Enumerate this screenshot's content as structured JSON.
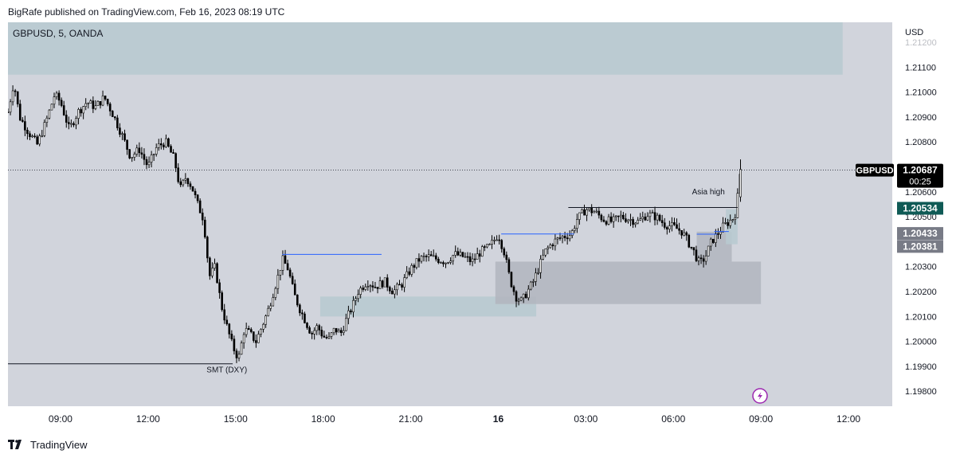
{
  "header": {
    "published": "BigRafe published on TradingView.com, Feb 16, 2023 08:19 UTC"
  },
  "footer": {
    "brand": "TradingView"
  },
  "colors": {
    "plot_bg": "#d1d4dc",
    "candle": "#000000",
    "zone_teal": "#b8cad0",
    "zone_gray": "#b2b5be",
    "blue_line": "#2962ff",
    "price_badge": "#000000",
    "asia_badge": "#0f5a55",
    "gray_badge": "#787b86",
    "lightning": "#9c27b0"
  },
  "chart_data": {
    "type": "candlestick",
    "symbol_label": "GBPUSD, 5, OANDA",
    "currency": "USD",
    "y_ticks": [
      "1.21100",
      "1.21000",
      "1.20900",
      "1.20800",
      "1.20600",
      "1.20500",
      "1.20300",
      "1.20200",
      "1.20100",
      "1.20000",
      "1.19900",
      "1.19800"
    ],
    "y_partial_tick": "1.21200",
    "ylim": [
      1.1974,
      1.2128
    ],
    "x_ticks": [
      "09:00",
      "12:00",
      "15:00",
      "18:00",
      "21:00",
      "16",
      "03:00",
      "06:00",
      "09:00",
      "12:00"
    ],
    "x_tick_hours": [
      9,
      12,
      15,
      18,
      21,
      24,
      27,
      30,
      33,
      36
    ],
    "xlim_hours": [
      7.2,
      37.5
    ],
    "current_price": {
      "symbol": "GBPUSD",
      "price": "1.20687",
      "countdown": "00:25",
      "value": 1.20687
    },
    "price_labels": [
      {
        "text": "1.20534",
        "value": 1.20534,
        "style": "asia"
      },
      {
        "text": "1.20433",
        "value": 1.20433,
        "style": "gray"
      },
      {
        "text": "1.20381",
        "value": 1.20381,
        "style": "gray"
      }
    ],
    "annotations": [
      {
        "text": "SMT (DXY)",
        "hour": 14.7,
        "price": 1.19875
      },
      {
        "text": "Asia high",
        "hour": 31.2,
        "price": 1.2059
      }
    ],
    "zones": [
      {
        "name": "top-zone",
        "x0": 7.2,
        "x1": 35.8,
        "y0": 1.2128,
        "y1": 1.2107,
        "style": "teal"
      },
      {
        "name": "demand-zone-left",
        "x0": 17.9,
        "x1": 25.3,
        "y0": 1.2018,
        "y1": 1.201,
        "style": "teal"
      },
      {
        "name": "demand-zone-big",
        "x0": 23.9,
        "x1": 33.0,
        "y0": 1.2032,
        "y1": 1.2015,
        "style": "gray"
      },
      {
        "name": "demand-zone-small",
        "x0": 30.8,
        "x1": 32.0,
        "y0": 1.2044,
        "y1": 1.2032,
        "style": "gray"
      },
      {
        "name": "asia-block",
        "x0": 31.8,
        "x1": 32.2,
        "y0": 1.2053,
        "y1": 1.2039,
        "style": "teal"
      }
    ],
    "lines": [
      {
        "name": "smt-line",
        "x0": 7.2,
        "x1": 14.9,
        "y": 1.1991,
        "style": "black"
      },
      {
        "name": "swing-high-1",
        "x0": 16.6,
        "x1": 20.0,
        "y": 1.20349,
        "style": "blue"
      },
      {
        "name": "swing-high-2",
        "x0": 24.1,
        "x1": 26.6,
        "y": 1.20431,
        "style": "blue"
      },
      {
        "name": "asia-high-line",
        "x0": 26.4,
        "x1": 32.2,
        "y": 1.20537,
        "style": "black"
      },
      {
        "name": "inner-high",
        "x0": 30.8,
        "x1": 31.5,
        "y": 1.2043,
        "style": "blue"
      },
      {
        "name": "inner-high-2",
        "x0": 31.4,
        "x1": 31.9,
        "y": 1.20441,
        "style": "blue"
      }
    ],
    "path_points": [
      [
        7.2,
        1.2092
      ],
      [
        7.4,
        1.2104
      ],
      [
        7.6,
        1.209
      ],
      [
        7.9,
        1.2084
      ],
      [
        8.2,
        1.2079
      ],
      [
        8.5,
        1.2088
      ],
      [
        8.8,
        1.2099
      ],
      [
        9.0,
        1.2096
      ],
      [
        9.3,
        1.2085
      ],
      [
        9.6,
        1.2092
      ],
      [
        9.9,
        1.2096
      ],
      [
        10.2,
        1.2094
      ],
      [
        10.5,
        1.2098
      ],
      [
        10.8,
        1.2091
      ],
      [
        11.1,
        1.2083
      ],
      [
        11.4,
        1.2074
      ],
      [
        11.7,
        1.2077
      ],
      [
        12.0,
        1.207
      ],
      [
        12.3,
        1.2078
      ],
      [
        12.6,
        1.208
      ],
      [
        12.9,
        1.2073
      ],
      [
        13.1,
        1.2061
      ],
      [
        13.3,
        1.2066
      ],
      [
        13.5,
        1.2062
      ],
      [
        13.7,
        1.2055
      ],
      [
        13.9,
        1.2049
      ],
      [
        14.0,
        1.2038
      ],
      [
        14.1,
        1.2026
      ],
      [
        14.3,
        1.203
      ],
      [
        14.5,
        1.2015
      ],
      [
        14.7,
        1.2006
      ],
      [
        14.9,
        1.1998
      ],
      [
        15.1,
        1.1993
      ],
      [
        15.3,
        1.2005
      ],
      [
        15.5,
        1.2003
      ],
      [
        15.7,
        1.2
      ],
      [
        15.9,
        1.2006
      ],
      [
        16.1,
        1.2012
      ],
      [
        16.3,
        1.202
      ],
      [
        16.5,
        1.2028
      ],
      [
        16.6,
        1.2033
      ],
      [
        16.8,
        1.2029
      ],
      [
        17.0,
        1.2019
      ],
      [
        17.2,
        1.2013
      ],
      [
        17.4,
        1.2008
      ],
      [
        17.6,
        1.2003
      ],
      [
        17.8,
        1.2006
      ],
      [
        18.0,
        1.2002
      ],
      [
        18.2,
        1.2001
      ],
      [
        18.4,
        1.2005
      ],
      [
        18.6,
        1.2003
      ],
      [
        18.8,
        1.2009
      ],
      [
        19.0,
        1.2014
      ],
      [
        19.2,
        1.202
      ],
      [
        19.5,
        1.2024
      ],
      [
        19.8,
        1.2022
      ],
      [
        20.1,
        1.2024
      ],
      [
        20.4,
        1.202
      ],
      [
        20.7,
        1.2023
      ],
      [
        21.0,
        1.2029
      ],
      [
        21.3,
        1.2033
      ],
      [
        21.6,
        1.2034
      ],
      [
        21.9,
        1.2033
      ],
      [
        22.2,
        1.2032
      ],
      [
        22.5,
        1.2035
      ],
      [
        22.8,
        1.2034
      ],
      [
        23.1,
        1.2032
      ],
      [
        23.4,
        1.2036
      ],
      [
        23.7,
        1.2038
      ],
      [
        24.0,
        1.2043
      ],
      [
        24.2,
        1.2036
      ],
      [
        24.4,
        1.2025
      ],
      [
        24.6,
        1.2018
      ],
      [
        24.8,
        1.2016
      ],
      [
        25.0,
        1.202
      ],
      [
        25.2,
        1.2024
      ],
      [
        25.4,
        1.203
      ],
      [
        25.6,
        1.2036
      ],
      [
        25.9,
        1.204
      ],
      [
        26.2,
        1.2042
      ],
      [
        26.5,
        1.2043
      ],
      [
        26.7,
        1.2049
      ],
      [
        27.0,
        1.2053
      ],
      [
        27.3,
        1.2052
      ],
      [
        27.6,
        1.2049
      ],
      [
        27.9,
        1.2048
      ],
      [
        28.2,
        1.205
      ],
      [
        28.5,
        1.2049
      ],
      [
        28.8,
        1.2048
      ],
      [
        29.1,
        1.2051
      ],
      [
        29.4,
        1.205
      ],
      [
        29.7,
        1.2047
      ],
      [
        30.0,
        1.2046
      ],
      [
        30.3,
        1.2044
      ],
      [
        30.5,
        1.204
      ],
      [
        30.7,
        1.2036
      ],
      [
        30.9,
        1.2031
      ],
      [
        31.1,
        1.2034
      ],
      [
        31.3,
        1.204
      ],
      [
        31.5,
        1.2043
      ],
      [
        31.7,
        1.2046
      ],
      [
        31.9,
        1.2048
      ],
      [
        32.1,
        1.205
      ],
      [
        32.2,
        1.2058
      ],
      [
        32.3,
        1.2069
      ]
    ]
  }
}
